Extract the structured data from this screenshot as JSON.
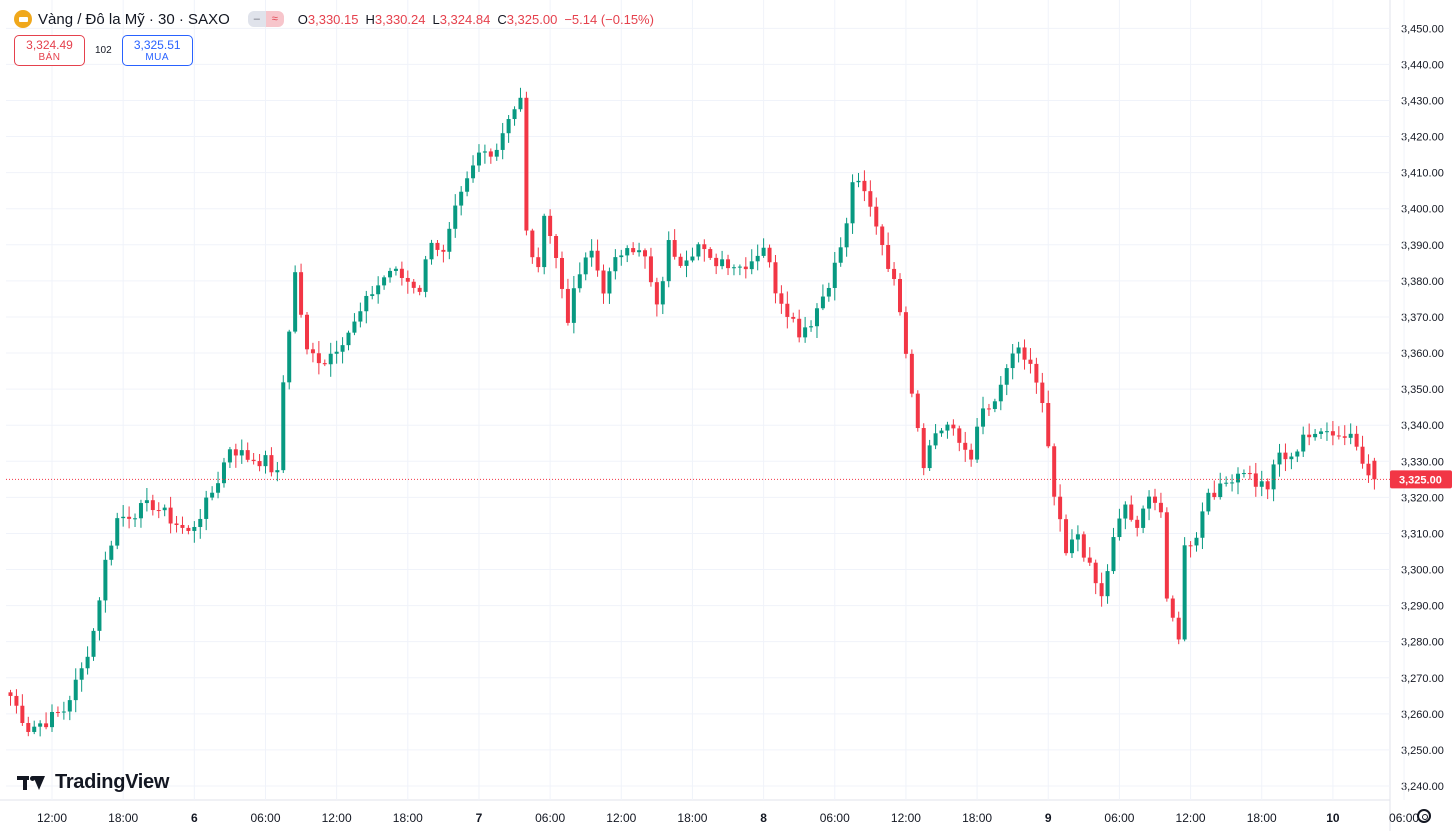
{
  "header": {
    "symbol_title": "Vàng / Đô la Mỹ · 30 · SAXO",
    "icon": "gold-coin-icon",
    "ohlc": {
      "o_label": "O",
      "o": "3,330.15",
      "h_label": "H",
      "h": "3,330.24",
      "l_label": "L",
      "l": "3,324.84",
      "c_label": "C",
      "c": "3,325.00",
      "change": "−5.14 (−0.15%)"
    }
  },
  "trade": {
    "sell_price": "3,324.49",
    "sell_label": "BÁN",
    "spread": "102",
    "buy_price": "3,325.51",
    "buy_label": "MUA"
  },
  "branding": {
    "logo_text": "TradingView"
  },
  "colors": {
    "up": "#089981",
    "down": "#f23645",
    "price_line": "#f23645",
    "grid": "#f0f3fa"
  },
  "chart_data": {
    "type": "candlestick",
    "current_price": 3325.0,
    "current_price_label": "3,325.00",
    "y_range": [
      3240,
      3450
    ],
    "y_ticks": [
      3240,
      3250,
      3260,
      3270,
      3280,
      3290,
      3300,
      3310,
      3320,
      3330,
      3340,
      3350,
      3360,
      3370,
      3380,
      3390,
      3400,
      3410,
      3420,
      3430,
      3440,
      3450
    ],
    "y_tick_labels": [
      "3,240.00",
      "3,250.00",
      "3,260.00",
      "3,270.00",
      "3,280.00",
      "3,290.00",
      "3,300.00",
      "3,310.00",
      "3,320.00",
      "3,330.00",
      "3,340.00",
      "3,350.00",
      "3,360.00",
      "3,370.00",
      "3,380.00",
      "3,390.00",
      "3,400.00",
      "3,410.00",
      "3,420.00",
      "3,430.00",
      "3,440.00",
      "3,450.00"
    ],
    "x_tick_labels": [
      {
        "label": "12:00",
        "bar": 7
      },
      {
        "label": "18:00",
        "bar": 19
      },
      {
        "label": "6",
        "bar": 31,
        "bold": true
      },
      {
        "label": "06:00",
        "bar": 43
      },
      {
        "label": "12:00",
        "bar": 55
      },
      {
        "label": "18:00",
        "bar": 67
      },
      {
        "label": "7",
        "bar": 79,
        "bold": true
      },
      {
        "label": "06:00",
        "bar": 91
      },
      {
        "label": "12:00",
        "bar": 103
      },
      {
        "label": "18:00",
        "bar": 115
      },
      {
        "label": "8",
        "bar": 127,
        "bold": true
      },
      {
        "label": "06:00",
        "bar": 139
      },
      {
        "label": "12:00",
        "bar": 151
      },
      {
        "label": "18:00",
        "bar": 163
      },
      {
        "label": "9",
        "bar": 175,
        "bold": true
      },
      {
        "label": "06:00",
        "bar": 187
      },
      {
        "label": "12:00",
        "bar": 199
      },
      {
        "label": "18:00",
        "bar": 211
      },
      {
        "label": "10",
        "bar": 223,
        "bold": true
      },
      {
        "label": "06:00",
        "bar": 235
      }
    ],
    "ohlc_close_path": [
      {
        "bar": 0,
        "close": 3265
      },
      {
        "bar": 3,
        "close": 3256
      },
      {
        "bar": 6,
        "close": 3258
      },
      {
        "bar": 9,
        "close": 3261
      },
      {
        "bar": 12,
        "close": 3272
      },
      {
        "bar": 14,
        "close": 3283
      },
      {
        "bar": 16,
        "close": 3302
      },
      {
        "bar": 18,
        "close": 3314
      },
      {
        "bar": 21,
        "close": 3316
      },
      {
        "bar": 24,
        "close": 3318
      },
      {
        "bar": 27,
        "close": 3314
      },
      {
        "bar": 30,
        "close": 3310
      },
      {
        "bar": 33,
        "close": 3318
      },
      {
        "bar": 35,
        "close": 3325
      },
      {
        "bar": 37,
        "close": 3334
      },
      {
        "bar": 40,
        "close": 3331
      },
      {
        "bar": 43,
        "close": 3330
      },
      {
        "bar": 45,
        "close": 3326
      },
      {
        "bar": 46,
        "close": 3352
      },
      {
        "bar": 48,
        "close": 3382
      },
      {
        "bar": 50,
        "close": 3360
      },
      {
        "bar": 53,
        "close": 3358
      },
      {
        "bar": 55,
        "close": 3362
      },
      {
        "bar": 58,
        "close": 3368
      },
      {
        "bar": 61,
        "close": 3377
      },
      {
        "bar": 64,
        "close": 3383
      },
      {
        "bar": 67,
        "close": 3380
      },
      {
        "bar": 69,
        "close": 3378
      },
      {
        "bar": 71,
        "close": 3392
      },
      {
        "bar": 73,
        "close": 3387
      },
      {
        "bar": 75,
        "close": 3399
      },
      {
        "bar": 77,
        "close": 3407
      },
      {
        "bar": 79,
        "close": 3415
      },
      {
        "bar": 82,
        "close": 3417
      },
      {
        "bar": 84,
        "close": 3426
      },
      {
        "bar": 86,
        "close": 3430
      },
      {
        "bar": 87,
        "close": 3393
      },
      {
        "bar": 89,
        "close": 3382
      },
      {
        "bar": 90,
        "close": 3400
      },
      {
        "bar": 92,
        "close": 3386
      },
      {
        "bar": 94,
        "close": 3370
      },
      {
        "bar": 96,
        "close": 3382
      },
      {
        "bar": 98,
        "close": 3388
      },
      {
        "bar": 100,
        "close": 3378
      },
      {
        "bar": 102,
        "close": 3385
      },
      {
        "bar": 104,
        "close": 3391
      },
      {
        "bar": 107,
        "close": 3386
      },
      {
        "bar": 109,
        "close": 3372
      },
      {
        "bar": 111,
        "close": 3390
      },
      {
        "bar": 113,
        "close": 3386
      },
      {
        "bar": 116,
        "close": 3390
      },
      {
        "bar": 118,
        "close": 3385
      },
      {
        "bar": 120,
        "close": 3386
      },
      {
        "bar": 123,
        "close": 3384
      },
      {
        "bar": 125,
        "close": 3386
      },
      {
        "bar": 127,
        "close": 3390
      },
      {
        "bar": 129,
        "close": 3378
      },
      {
        "bar": 131,
        "close": 3372
      },
      {
        "bar": 133,
        "close": 3366
      },
      {
        "bar": 135,
        "close": 3369
      },
      {
        "bar": 137,
        "close": 3376
      },
      {
        "bar": 139,
        "close": 3384
      },
      {
        "bar": 141,
        "close": 3395
      },
      {
        "bar": 142,
        "close": 3408
      },
      {
        "bar": 144,
        "close": 3404
      },
      {
        "bar": 146,
        "close": 3396
      },
      {
        "bar": 148,
        "close": 3385
      },
      {
        "bar": 150,
        "close": 3373
      },
      {
        "bar": 152,
        "close": 3350
      },
      {
        "bar": 154,
        "close": 3330
      },
      {
        "bar": 156,
        "close": 3338
      },
      {
        "bar": 158,
        "close": 3340
      },
      {
        "bar": 160,
        "close": 3335
      },
      {
        "bar": 162,
        "close": 3332
      },
      {
        "bar": 164,
        "close": 3344
      },
      {
        "bar": 166,
        "close": 3345
      },
      {
        "bar": 168,
        "close": 3356
      },
      {
        "bar": 170,
        "close": 3360
      },
      {
        "bar": 172,
        "close": 3357
      },
      {
        "bar": 174,
        "close": 3345
      },
      {
        "bar": 176,
        "close": 3320
      },
      {
        "bar": 178,
        "close": 3304
      },
      {
        "bar": 180,
        "close": 3310
      },
      {
        "bar": 182,
        "close": 3300
      },
      {
        "bar": 184,
        "close": 3292
      },
      {
        "bar": 186,
        "close": 3308
      },
      {
        "bar": 188,
        "close": 3318
      },
      {
        "bar": 190,
        "close": 3310
      },
      {
        "bar": 192,
        "close": 3322
      },
      {
        "bar": 194,
        "close": 3316
      },
      {
        "bar": 195,
        "close": 3290
      },
      {
        "bar": 197,
        "close": 3282
      },
      {
        "bar": 198,
        "close": 3306
      },
      {
        "bar": 200,
        "close": 3310
      },
      {
        "bar": 202,
        "close": 3322
      },
      {
        "bar": 204,
        "close": 3322
      },
      {
        "bar": 206,
        "close": 3326
      },
      {
        "bar": 208,
        "close": 3328
      },
      {
        "bar": 210,
        "close": 3324
      },
      {
        "bar": 212,
        "close": 3323
      },
      {
        "bar": 214,
        "close": 3332
      },
      {
        "bar": 216,
        "close": 3330
      },
      {
        "bar": 218,
        "close": 3338
      },
      {
        "bar": 220,
        "close": 3336
      },
      {
        "bar": 222,
        "close": 3340
      },
      {
        "bar": 224,
        "close": 3337
      },
      {
        "bar": 226,
        "close": 3338
      },
      {
        "bar": 228,
        "close": 3330
      },
      {
        "bar": 229,
        "close": 3328
      },
      {
        "bar": 230,
        "close": 3325
      }
    ]
  }
}
